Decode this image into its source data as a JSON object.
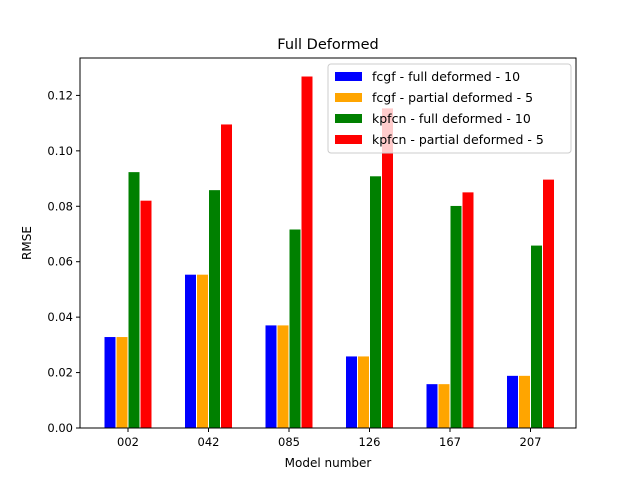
{
  "chart_data": {
    "type": "bar",
    "title": "Full Deformed",
    "xlabel": "Model number",
    "ylabel": "RMSE",
    "categories": [
      "002",
      "042",
      "085",
      "126",
      "167",
      "207"
    ],
    "ylim": [
      0,
      0.1335
    ],
    "yticks": [
      "0.00",
      "0.02",
      "0.04",
      "0.06",
      "0.08",
      "0.10",
      "0.12"
    ],
    "ytick_values": [
      0,
      0.02,
      0.04,
      0.06,
      0.08,
      0.1,
      0.12
    ],
    "legend_position": "top-right",
    "grid": false,
    "series": [
      {
        "name": "fcgf - full deformed - 10",
        "color": "#0000ff",
        "values": [
          0.033,
          0.0555,
          0.0372,
          0.026,
          0.016,
          0.019
        ]
      },
      {
        "name": "fcgf - partial deformed - 5",
        "color": "#ffa500",
        "values": [
          0.033,
          0.0555,
          0.0372,
          0.026,
          0.016,
          0.019
        ]
      },
      {
        "name": "kpfcn - full deformed - 10",
        "color": "#008000",
        "values": [
          0.0925,
          0.086,
          0.0718,
          0.091,
          0.0803,
          0.066
        ]
      },
      {
        "name": "kpfcn - partial deformed - 5",
        "color": "#ff0000",
        "values": [
          0.0822,
          0.1097,
          0.127,
          0.1155,
          0.0852,
          0.0898
        ]
      }
    ]
  }
}
